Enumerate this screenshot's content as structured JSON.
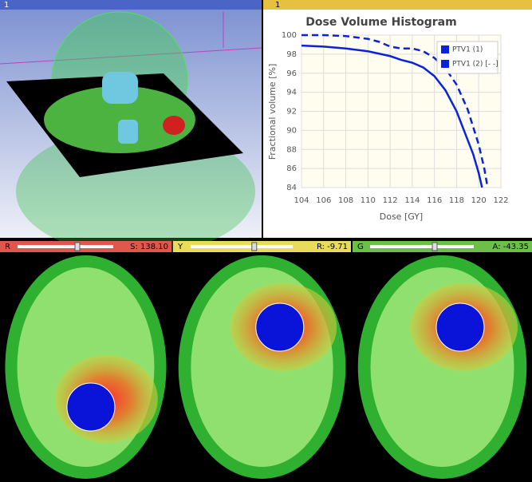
{
  "layout_panels": {
    "three_d": {
      "tab": "1"
    },
    "chart_view": {
      "tab": "1"
    }
  },
  "slice_views": [
    {
      "letter": "R",
      "offset": "S: 138.10",
      "color": "#e0584c"
    },
    {
      "letter": "Y",
      "offset": "R: -9.71",
      "color": "#e8dc5a"
    },
    {
      "letter": "G",
      "offset": "A: -43.35",
      "color": "#6cc04a"
    }
  ],
  "chart_data": {
    "type": "line",
    "title": "Dose Volume Histogram",
    "x_label": "Dose [GY]",
    "y_label": "Fractional volume [%]",
    "xlim": [
      104,
      122
    ],
    "xticks": [
      104,
      106,
      108,
      110,
      112,
      114,
      116,
      118,
      120,
      122
    ],
    "ylim": [
      84,
      100
    ],
    "yticks": [
      84,
      86,
      88,
      90,
      92,
      94,
      96,
      98,
      100
    ],
    "grid": true,
    "legend": "top-right",
    "series": [
      {
        "name": "PTV1 (1)",
        "color": "#0a22d8",
        "dash": false,
        "x": [
          104,
          106,
          108,
          110,
          112,
          113,
          114,
          115,
          116,
          117,
          118,
          119,
          119.5,
          120,
          120.3
        ],
        "values": [
          98.9,
          98.8,
          98.6,
          98.3,
          97.8,
          97.4,
          97.1,
          96.6,
          95.7,
          94.2,
          92,
          89,
          87.5,
          85.5,
          84
        ]
      },
      {
        "name": "PTV1 (2) [- -]",
        "color": "#0a22d8",
        "dash": true,
        "x": [
          104,
          106,
          108,
          110,
          111,
          112,
          113,
          114,
          115,
          116,
          117,
          118,
          119,
          120,
          120.5,
          120.8
        ],
        "values": [
          100,
          100,
          99.9,
          99.6,
          99.3,
          98.8,
          98.6,
          98.6,
          98.3,
          97.6,
          96.5,
          94.8,
          92.2,
          88.5,
          86,
          84
        ]
      }
    ]
  }
}
